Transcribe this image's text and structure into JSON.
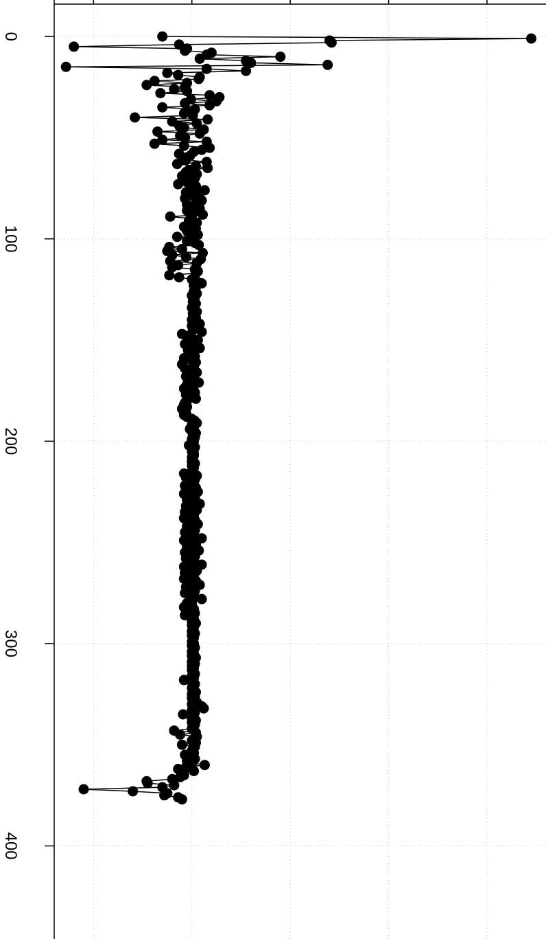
{
  "chart_data": {
    "type": "line",
    "orientation": "vertical-index",
    "title": "",
    "xlabel": "",
    "ylabel": "",
    "index_axis": {
      "range": [
        -16,
        446
      ],
      "ticks": [
        0,
        100,
        200,
        300,
        400
      ],
      "tick_labels": [
        "0",
        "100",
        "200",
        "300",
        "400"
      ]
    },
    "value_axis": {
      "range": [
        -1.4,
        3.6
      ],
      "ticks": [
        -1,
        0,
        1,
        2,
        3
      ],
      "tick_labels": []
    },
    "grid": true,
    "markers": "filled-circle",
    "colors": {
      "line": "#000000",
      "marker": "#000000",
      "grid": "#bdbdbd"
    },
    "series": [
      {
        "values": [
          -0.3,
          3.45,
          1.4,
          1.42,
          -0.13,
          -1.2,
          -0.05,
          -0.07,
          0.2,
          0.15,
          0.9,
          0.08,
          0.55,
          0.6,
          1.38,
          -1.28,
          0.15,
          0.55,
          -0.25,
          -0.14,
          0.08,
          0.07,
          -0.38,
          -0.05,
          -0.46,
          -0.07,
          -0.18,
          -0.05,
          -0.32,
          0.18,
          0.28,
          -0.01,
          0.25,
          -0.07,
          0.18,
          -0.3,
          0.03,
          -0.05,
          -0.08,
          0.01,
          -0.58,
          0.16,
          -0.2,
          0.05,
          -0.13,
          -0.08,
          0.12,
          -0.35,
          0.08,
          -0.12,
          -0.07,
          -0.3,
          0.15,
          -0.38,
          -0.08,
          0.18,
          0.1,
          0.02,
          -0.13,
          -0.02,
          -0.08,
          -0.06,
          0.15,
          -0.15,
          0.04,
          0.16,
          -0.03,
          -0.06,
          0.05,
          -0.1,
          0.03,
          -0.02,
          -0.05,
          -0.14,
          0.04,
          0.0,
          0.13,
          -0.06,
          0.07,
          0.02,
          -0.07,
          0.1,
          0.05,
          -0.05,
          0.0,
          0.08,
          -0.05,
          0.02,
          0.11,
          -0.22,
          0.0,
          -0.03,
          0.05,
          -0.02,
          -0.08,
          0.04,
          -0.05,
          0.03,
          0.06,
          -0.15,
          0.0,
          -0.05,
          0.03,
          0.07,
          -0.23,
          -0.1,
          -0.25,
          0.11,
          -0.2,
          -0.06,
          0.09,
          -0.22,
          0.05,
          -0.14,
          -0.2,
          0.03,
          0.06,
          0.04,
          -0.23,
          -0.13,
          0.0,
          0.05,
          0.1,
          0.02,
          0.04,
          0.03,
          0.02,
          0.05,
          0.0,
          0.03,
          0.02,
          0.01,
          0.04,
          0.02,
          0.0,
          0.03,
          0.05,
          0.01,
          0.02,
          0.04,
          0.0,
          0.03,
          0.08,
          0.0,
          0.02,
          0.01,
          0.1,
          -0.1,
          -0.05,
          0.0,
          0.06,
          0.02,
          -0.07,
          0.0,
          0.08,
          -0.04,
          0.0,
          0.02,
          0.03,
          -0.08,
          0.0,
          0.04,
          -0.1,
          0.02,
          -0.07,
          0.0,
          0.05,
          0.01,
          -0.06,
          0.02,
          0.0,
          0.07,
          -0.05,
          0.0,
          -0.08,
          0.02,
          0.03,
          -0.06,
          0.0,
          0.04,
          -0.05,
          -0.07,
          -0.08,
          -0.05,
          -0.1,
          -0.07,
          -0.06,
          -0.08,
          -0.05,
          0.0,
          0.03,
          0.05,
          0.0,
          0.02,
          -0.02,
          0.0,
          0.04,
          0.01,
          0.03,
          0.0,
          0.02,
          0.0,
          -0.03,
          0.03,
          0.01,
          0.0,
          0.02,
          0.02,
          0.0,
          0.01,
          0.0,
          0.03,
          0.0,
          0.02,
          0.01,
          0.0,
          -0.08,
          0.05,
          -0.06,
          0.03,
          0.0,
          0.02,
          -0.07,
          0.04,
          0.0,
          0.06,
          -0.08,
          0.0,
          0.03,
          -0.05,
          0.0,
          0.08,
          -0.06,
          0.0,
          0.05,
          -0.07,
          0.0,
          0.02,
          -0.08,
          0.03,
          0.0,
          0.06,
          -0.05,
          0.0,
          0.03,
          -0.07,
          0.02,
          0.0,
          0.1,
          -0.08,
          0.0,
          0.04,
          -0.05,
          0.0,
          0.07,
          -0.07,
          0.0,
          0.03,
          -0.06,
          0.02,
          0.0,
          0.1,
          -0.08,
          0.0,
          0.05,
          -0.07,
          0.02,
          0.0,
          -0.08,
          0.04,
          0.0,
          0.08,
          -0.06,
          0.0,
          0.03,
          -0.07,
          0.02,
          0.0,
          0.1,
          0.0,
          -0.05,
          0.0,
          -0.08,
          0.02,
          0.0,
          0.03,
          -0.07,
          0.0,
          0.02,
          0.0,
          0.04,
          0.0,
          0.02,
          0.01,
          0.0,
          0.03,
          0.0,
          0.02,
          0.01,
          0.0,
          0.02,
          0.0,
          0.03,
          0.01,
          0.0,
          0.02,
          0.0,
          0.04,
          0.01,
          0.0,
          0.03,
          0.0,
          0.02,
          0.0,
          0.01,
          0.03,
          0.0,
          0.02,
          -0.08,
          0.0,
          0.03,
          0.01,
          0.0,
          0.02,
          0.04,
          0.0,
          0.03,
          0.0,
          0.02,
          0.05,
          0.0,
          0.1,
          0.12,
          0.0,
          0.03,
          -0.09,
          0.02,
          0.0,
          0.04,
          0.0,
          0.03,
          0.02,
          0.0,
          -0.18,
          0.04,
          -0.12,
          0.05,
          0.02,
          0.0,
          0.04,
          -0.1,
          0.03,
          0.01,
          0.0,
          0.02,
          -0.07,
          0.0,
          0.03,
          -0.05,
          0.0,
          0.13,
          -0.06,
          -0.14,
          0.02,
          -0.1,
          -0.08,
          -0.12,
          -0.2,
          -0.46,
          -0.45,
          -0.18,
          -0.3,
          -1.1,
          -0.6,
          -0.25,
          -0.28,
          -0.14,
          -0.1
        ]
      }
    ]
  }
}
